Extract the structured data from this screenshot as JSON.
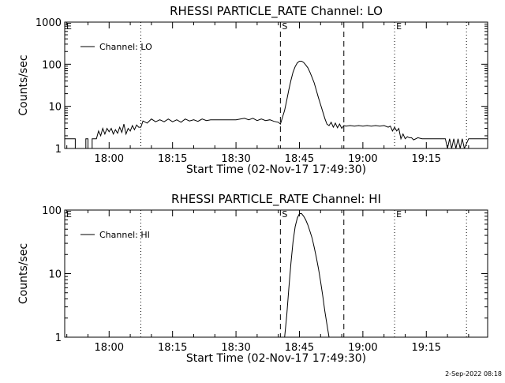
{
  "footer": {
    "stamp": "2-Sep-2022 08:18"
  },
  "chart_data": [
    {
      "type": "line",
      "title": "RHESSI PARTICLE_RATE Channel: LO",
      "xlabel": "Start Time (02-Nov-17 17:49:30)",
      "ylabel": "Counts/sec",
      "y_scale": "log",
      "ylim": [
        1,
        1000
      ],
      "y_ticks": [
        1,
        10,
        100,
        1000
      ],
      "y_tick_labels": [
        "1",
        "10",
        "100",
        "1000"
      ],
      "xlim": [
        "17:49:30",
        "19:29:30"
      ],
      "x_ticks": [
        "18:00",
        "18:15",
        "18:30",
        "18:45",
        "19:00",
        "19:15"
      ],
      "legend": {
        "placement": "top-left",
        "entries": [
          "Channel: LO"
        ]
      },
      "markers": [
        {
          "time": "17:49:30",
          "style": "dotted",
          "label": "E"
        },
        {
          "time": "18:07:30",
          "style": "dotted",
          "label": ""
        },
        {
          "time": "18:40:30",
          "style": "dashed",
          "label": "S"
        },
        {
          "time": "18:55:30",
          "style": "dashed",
          "label": ""
        },
        {
          "time": "19:07:30",
          "style": "dotted",
          "label": "E"
        },
        {
          "time": "19:24:30",
          "style": "dotted",
          "label": ""
        }
      ],
      "series": [
        {
          "name": "Channel: LO",
          "x": [
            "17:49:30",
            "17:52:00",
            "17:52:00",
            "17:54:30",
            "17:54:30",
            "17:55:00",
            "17:55:00",
            "17:56:00",
            "17:56:00",
            "17:57:00",
            "17:57:30",
            "17:58:00",
            "17:58:30",
            "17:59:00",
            "17:59:30",
            "18:00:00",
            "18:00:30",
            "18:01:00",
            "18:01:30",
            "18:02:00",
            "18:02:30",
            "18:03:00",
            "18:03:30",
            "18:04:00",
            "18:04:30",
            "18:05:00",
            "18:05:30",
            "18:06:00",
            "18:06:30",
            "18:07:00",
            "18:07:30",
            "18:08:00",
            "18:09:00",
            "18:10:00",
            "18:11:00",
            "18:12:00",
            "18:13:00",
            "18:14:00",
            "18:15:00",
            "18:16:00",
            "18:17:00",
            "18:18:00",
            "18:19:00",
            "18:20:00",
            "18:21:00",
            "18:22:00",
            "18:23:00",
            "18:24:00",
            "18:25:00",
            "18:26:00",
            "18:27:00",
            "18:28:00",
            "18:29:00",
            "18:30:00",
            "18:31:00",
            "18:32:00",
            "18:33:00",
            "18:34:00",
            "18:35:00",
            "18:36:00",
            "18:37:00",
            "18:38:00",
            "18:39:00",
            "18:40:00",
            "18:40:30",
            "18:41:00",
            "18:41:30",
            "18:42:00",
            "18:42:30",
            "18:43:00",
            "18:43:30",
            "18:44:00",
            "18:44:30",
            "18:45:00",
            "18:45:30",
            "18:46:00",
            "18:46:30",
            "18:47:00",
            "18:47:30",
            "18:48:00",
            "18:48:30",
            "18:49:00",
            "18:49:30",
            "18:50:00",
            "18:50:30",
            "18:51:00",
            "18:51:30",
            "18:52:00",
            "18:52:30",
            "18:53:00",
            "18:53:30",
            "18:54:00",
            "18:54:30",
            "18:55:00",
            "18:55:30",
            "18:56:00",
            "18:57:00",
            "18:58:00",
            "18:59:00",
            "19:00:00",
            "19:01:00",
            "19:02:00",
            "19:03:00",
            "19:04:00",
            "19:05:00",
            "19:06:00",
            "19:06:30",
            "19:07:00",
            "19:07:30",
            "19:08:00",
            "19:08:30",
            "19:09:00",
            "19:09:30",
            "19:10:00",
            "19:10:30",
            "19:11:00",
            "19:11:30",
            "19:12:00",
            "19:13:00",
            "19:14:00",
            "19:15:00",
            "19:16:00",
            "19:17:00",
            "19:18:00",
            "19:19:00",
            "19:19:30",
            "19:20:00",
            "19:20:30",
            "19:21:00",
            "19:21:30",
            "19:22:00",
            "19:22:30",
            "19:23:00",
            "19:23:30",
            "19:24:00",
            "19:25:00",
            "19:26:00",
            "19:27:00",
            "19:28:00",
            "19:29:30"
          ],
          "values": [
            1.7,
            1.7,
            1,
            1,
            1.7,
            1.7,
            1,
            1,
            1.7,
            1.7,
            2.6,
            2,
            3,
            2.2,
            3,
            2.5,
            3,
            2.2,
            2.8,
            2.3,
            3.2,
            2.4,
            3.8,
            2.2,
            3,
            2.6,
            3.5,
            2.8,
            3.6,
            3.2,
            3.2,
            4.5,
            4,
            5,
            4.3,
            4.8,
            4.3,
            5,
            4.3,
            4.8,
            4.2,
            5,
            4.5,
            4.8,
            4.4,
            5,
            4.6,
            4.8,
            4.8,
            4.8,
            4.8,
            4.8,
            4.8,
            4.8,
            5,
            5.2,
            4.8,
            5.2,
            4.6,
            5,
            4.6,
            4.8,
            4.4,
            4.2,
            3.8,
            5.5,
            8,
            14,
            25,
            42,
            65,
            88,
            108,
            118,
            118,
            110,
            96,
            82,
            64,
            48,
            36,
            24,
            16,
            11,
            7.5,
            5.2,
            3.8,
            3.5,
            4.2,
            3.2,
            4,
            3.1,
            3.8,
            3,
            3.5,
            3.4,
            3.5,
            3.4,
            3.5,
            3.4,
            3.5,
            3.4,
            3.5,
            3.4,
            3.5,
            3.2,
            3.4,
            2.6,
            3.2,
            2.6,
            3,
            1.7,
            2.2,
            1.7,
            1.9,
            1.8,
            1.8,
            1.6,
            1.8,
            1.7,
            1.7,
            1.7,
            1.7,
            1.7,
            1.7,
            1.7,
            1,
            1.7,
            1,
            1.7,
            1,
            1.7,
            1,
            1.7,
            1,
            1.7,
            1.7,
            1.7,
            1.7,
            1.7
          ]
        }
      ]
    },
    {
      "type": "line",
      "title": "RHESSI PARTICLE_RATE Channel: HI",
      "xlabel": "Start Time (02-Nov-17 17:49:30)",
      "ylabel": "Counts/sec",
      "y_scale": "log",
      "ylim": [
        1,
        100
      ],
      "y_ticks": [
        1,
        10,
        100
      ],
      "y_tick_labels": [
        "1",
        "10",
        "100"
      ],
      "xlim": [
        "17:49:30",
        "19:29:30"
      ],
      "x_ticks": [
        "18:00",
        "18:15",
        "18:30",
        "18:45",
        "19:00",
        "19:15"
      ],
      "legend": {
        "placement": "top-left",
        "entries": [
          "Channel: HI"
        ]
      },
      "markers": [
        {
          "time": "17:49:30",
          "style": "dotted",
          "label": "E"
        },
        {
          "time": "18:07:30",
          "style": "dotted",
          "label": ""
        },
        {
          "time": "18:40:30",
          "style": "dashed",
          "label": "S"
        },
        {
          "time": "18:55:30",
          "style": "dashed",
          "label": ""
        },
        {
          "time": "19:07:30",
          "style": "dotted",
          "label": "E"
        },
        {
          "time": "19:24:30",
          "style": "dotted",
          "label": ""
        }
      ],
      "series": [
        {
          "name": "Channel: HI",
          "x": [
            "18:41:30",
            "18:42:00",
            "18:42:30",
            "18:43:00",
            "18:43:30",
            "18:44:00",
            "18:44:30",
            "18:45:00",
            "18:45:30",
            "18:46:00",
            "18:46:30",
            "18:47:00",
            "18:47:30",
            "18:48:00",
            "18:48:30",
            "18:49:00",
            "18:49:30",
            "18:50:00",
            "18:50:30",
            "18:51:00",
            "18:51:30",
            "18:52:00"
          ],
          "values": [
            1,
            2.2,
            6,
            15,
            32,
            55,
            75,
            88,
            88,
            80,
            70,
            58,
            46,
            36,
            26,
            18,
            12,
            7.5,
            4.5,
            2.6,
            1.6,
            1
          ]
        }
      ]
    }
  ]
}
